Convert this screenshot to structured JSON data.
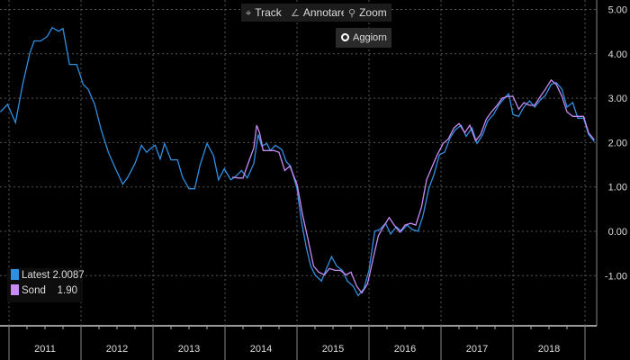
{
  "toolbar": {
    "track": "Track",
    "annotate": "Annotare",
    "zoom": "Zoom",
    "refresh": "Aggiorn"
  },
  "legend": [
    {
      "name": "Latest",
      "value": "2.0087",
      "color": "#2f8fe0"
    },
    {
      "name": "Sond",
      "value": "1.90",
      "color": "#c88af5"
    }
  ],
  "chart_data": {
    "type": "line",
    "xlabel": "",
    "ylabel": "",
    "xlim": [
      2010.875,
      2019.17
    ],
    "ylim": [
      -2.1,
      5.1
    ],
    "yticks": [
      5,
      4,
      3,
      2,
      1,
      0,
      -1
    ],
    "ytick_labels": [
      "5.00",
      "4.00",
      "3.00",
      "2.00",
      "1.00",
      "0.00",
      "-1.00"
    ],
    "xtick_labels": [
      "2011",
      "2012",
      "2013",
      "2014",
      "2015",
      "2016",
      "2017",
      "2018"
    ],
    "grid": true,
    "legend_position": "bottom-left",
    "series": [
      {
        "name": "Latest",
        "color": "#2f8fe0",
        "points": [
          [
            2010.88,
            2.69
          ],
          [
            2010.98,
            2.86
          ],
          [
            2011.09,
            2.45
          ],
          [
            2011.19,
            3.31
          ],
          [
            2011.29,
            4.02
          ],
          [
            2011.35,
            4.29
          ],
          [
            2011.44,
            4.29
          ],
          [
            2011.53,
            4.39
          ],
          [
            2011.6,
            4.59
          ],
          [
            2011.69,
            4.51
          ],
          [
            2011.75,
            4.57
          ],
          [
            2011.84,
            3.76
          ],
          [
            2011.94,
            3.76
          ],
          [
            2012.03,
            3.31
          ],
          [
            2012.1,
            3.2
          ],
          [
            2012.19,
            2.86
          ],
          [
            2012.28,
            2.29
          ],
          [
            2012.38,
            1.78
          ],
          [
            2012.48,
            1.41
          ],
          [
            2012.58,
            1.06
          ],
          [
            2012.65,
            1.22
          ],
          [
            2012.75,
            1.53
          ],
          [
            2012.84,
            1.94
          ],
          [
            2012.91,
            1.78
          ],
          [
            2012.98,
            1.88
          ],
          [
            2013.03,
            1.94
          ],
          [
            2013.1,
            1.63
          ],
          [
            2013.16,
            1.98
          ],
          [
            2013.25,
            1.61
          ],
          [
            2013.34,
            1.61
          ],
          [
            2013.41,
            1.22
          ],
          [
            2013.5,
            0.96
          ],
          [
            2013.58,
            0.96
          ],
          [
            2013.65,
            1.47
          ],
          [
            2013.75,
            1.98
          ],
          [
            2013.84,
            1.71
          ],
          [
            2013.91,
            1.16
          ],
          [
            2013.99,
            1.41
          ],
          [
            2014.08,
            1.16
          ],
          [
            2014.15,
            1.24
          ],
          [
            2014.23,
            1.37
          ],
          [
            2014.31,
            1.2
          ],
          [
            2014.4,
            1.53
          ],
          [
            2014.46,
            2.18
          ],
          [
            2014.51,
            1.92
          ],
          [
            2014.58,
            1.98
          ],
          [
            2014.63,
            1.82
          ],
          [
            2014.7,
            1.94
          ],
          [
            2014.79,
            1.84
          ],
          [
            2014.85,
            1.57
          ],
          [
            2014.91,
            1.47
          ],
          [
            2015.0,
            0.96
          ],
          [
            2015.06,
            0.24
          ],
          [
            2015.13,
            -0.37
          ],
          [
            2015.19,
            -0.78
          ],
          [
            2015.25,
            -0.98
          ],
          [
            2015.34,
            -1.12
          ],
          [
            2015.4,
            -0.88
          ],
          [
            2015.48,
            -0.57
          ],
          [
            2015.55,
            -0.78
          ],
          [
            2015.63,
            -0.88
          ],
          [
            2015.7,
            -1.12
          ],
          [
            2015.78,
            -1.24
          ],
          [
            2015.85,
            -1.45
          ],
          [
            2015.93,
            -1.29
          ],
          [
            2016.0,
            -0.88
          ],
          [
            2016.08,
            0.0
          ],
          [
            2016.15,
            0.04
          ],
          [
            2016.23,
            0.18
          ],
          [
            2016.3,
            -0.06
          ],
          [
            2016.38,
            0.1
          ],
          [
            2016.45,
            0.0
          ],
          [
            2016.53,
            0.14
          ],
          [
            2016.6,
            0.04
          ],
          [
            2016.68,
            0.0
          ],
          [
            2016.75,
            0.35
          ],
          [
            2016.83,
            0.96
          ],
          [
            2016.9,
            1.27
          ],
          [
            2016.98,
            1.73
          ],
          [
            2017.05,
            1.78
          ],
          [
            2017.13,
            2.12
          ],
          [
            2017.2,
            2.29
          ],
          [
            2017.28,
            2.39
          ],
          [
            2017.35,
            2.14
          ],
          [
            2017.43,
            2.33
          ],
          [
            2017.5,
            1.98
          ],
          [
            2017.58,
            2.18
          ],
          [
            2017.65,
            2.49
          ],
          [
            2017.73,
            2.63
          ],
          [
            2017.8,
            2.84
          ],
          [
            2017.88,
            3.0
          ],
          [
            2017.94,
            3.1
          ],
          [
            2018.0,
            2.63
          ],
          [
            2018.08,
            2.59
          ],
          [
            2018.15,
            2.8
          ],
          [
            2018.23,
            2.94
          ],
          [
            2018.3,
            2.8
          ],
          [
            2018.38,
            2.96
          ],
          [
            2018.45,
            3.06
          ],
          [
            2018.53,
            3.31
          ],
          [
            2018.6,
            3.35
          ],
          [
            2018.68,
            3.2
          ],
          [
            2018.75,
            2.8
          ],
          [
            2018.83,
            2.9
          ],
          [
            2018.9,
            2.55
          ],
          [
            2018.98,
            2.55
          ],
          [
            2019.05,
            2.18
          ],
          [
            2019.13,
            2.02
          ]
        ]
      },
      {
        "name": "Sond",
        "color": "#c88af5",
        "points": [
          [
            2014.1,
            1.22
          ],
          [
            2014.19,
            1.2
          ],
          [
            2014.25,
            1.2
          ],
          [
            2014.33,
            1.57
          ],
          [
            2014.4,
            1.88
          ],
          [
            2014.44,
            2.39
          ],
          [
            2014.48,
            2.22
          ],
          [
            2014.53,
            1.82
          ],
          [
            2014.6,
            1.82
          ],
          [
            2014.68,
            1.82
          ],
          [
            2014.75,
            1.78
          ],
          [
            2014.83,
            1.37
          ],
          [
            2014.9,
            1.47
          ],
          [
            2015.0,
            1.06
          ],
          [
            2015.08,
            0.35
          ],
          [
            2015.15,
            -0.16
          ],
          [
            2015.23,
            -0.78
          ],
          [
            2015.3,
            -0.92
          ],
          [
            2015.38,
            -0.98
          ],
          [
            2015.45,
            -0.84
          ],
          [
            2015.53,
            -0.88
          ],
          [
            2015.6,
            -0.88
          ],
          [
            2015.68,
            -0.98
          ],
          [
            2015.75,
            -0.92
          ],
          [
            2015.83,
            -1.24
          ],
          [
            2015.9,
            -1.39
          ],
          [
            2015.98,
            -1.18
          ],
          [
            2016.05,
            -0.67
          ],
          [
            2016.13,
            -0.1
          ],
          [
            2016.2,
            0.1
          ],
          [
            2016.28,
            0.31
          ],
          [
            2016.35,
            0.14
          ],
          [
            2016.43,
            -0.02
          ],
          [
            2016.5,
            0.14
          ],
          [
            2016.58,
            0.18
          ],
          [
            2016.65,
            0.14
          ],
          [
            2016.73,
            0.55
          ],
          [
            2016.8,
            1.16
          ],
          [
            2016.88,
            1.47
          ],
          [
            2016.95,
            1.73
          ],
          [
            2017.03,
            1.98
          ],
          [
            2017.1,
            2.08
          ],
          [
            2017.18,
            2.33
          ],
          [
            2017.25,
            2.43
          ],
          [
            2017.33,
            2.22
          ],
          [
            2017.4,
            2.39
          ],
          [
            2017.48,
            2.04
          ],
          [
            2017.55,
            2.18
          ],
          [
            2017.63,
            2.53
          ],
          [
            2017.7,
            2.69
          ],
          [
            2017.78,
            2.84
          ],
          [
            2017.85,
            3.0
          ],
          [
            2017.93,
            3.04
          ],
          [
            2018.0,
            3.04
          ],
          [
            2018.08,
            2.75
          ],
          [
            2018.15,
            2.9
          ],
          [
            2018.23,
            2.84
          ],
          [
            2018.3,
            2.84
          ],
          [
            2018.38,
            3.04
          ],
          [
            2018.45,
            3.2
          ],
          [
            2018.53,
            3.41
          ],
          [
            2018.6,
            3.31
          ],
          [
            2018.68,
            3.04
          ],
          [
            2018.75,
            2.69
          ],
          [
            2018.83,
            2.59
          ],
          [
            2018.9,
            2.59
          ],
          [
            2018.98,
            2.59
          ],
          [
            2019.05,
            2.22
          ],
          [
            2019.13,
            2.06
          ]
        ]
      }
    ]
  }
}
